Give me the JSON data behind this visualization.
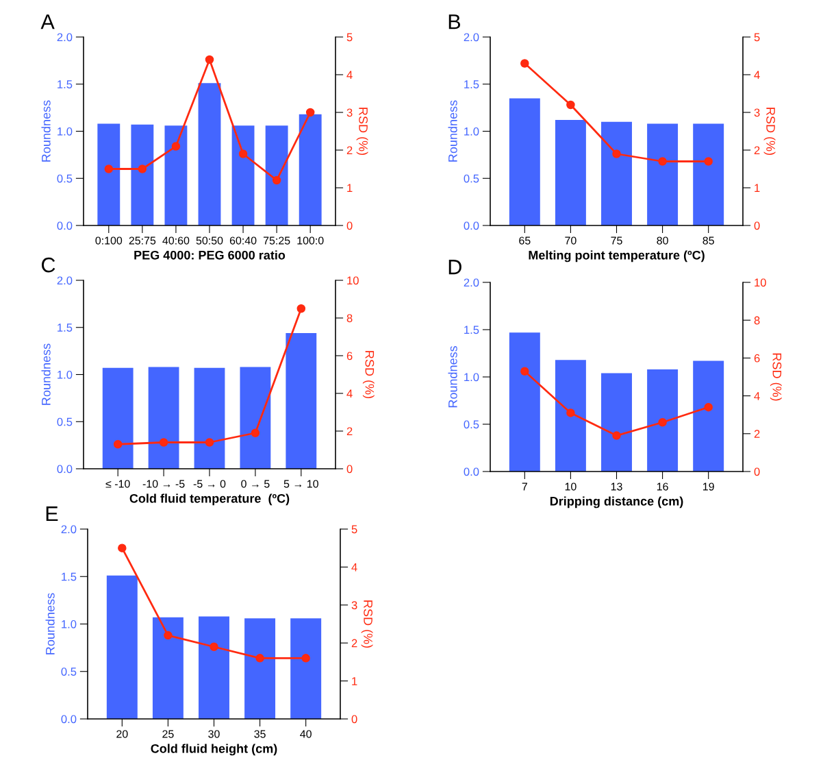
{
  "chart_data": [
    {
      "type": "bar",
      "annotations": [
        "A"
      ],
      "xlabel": "PEG 4000: PEG 6000 ratio",
      "ylabel": "Roundness",
      "y2label": "RSD (%)",
      "categories": [
        "0:100",
        "25:75",
        "40:60",
        "50:50",
        "60:40",
        "75:25",
        "100:0"
      ],
      "ylim": [
        0,
        2
      ],
      "yticks": [
        {
          "value": 0,
          "label": "0.0"
        },
        {
          "value": 0.5,
          "label": "0.5"
        },
        {
          "value": 1,
          "label": "1.0"
        },
        {
          "value": 1.5,
          "label": "1.5"
        },
        {
          "value": 2,
          "label": "2.0"
        }
      ],
      "y2lim": [
        0,
        5
      ],
      "y2ticks": [
        0,
        1,
        2,
        3,
        4,
        5
      ],
      "series": [
        {
          "color": "#4466ff",
          "values": [
            1.08,
            1.07,
            1.06,
            1.51,
            1.06,
            1.06,
            1.18
          ]
        },
        {
          "type": "line",
          "axis": "y2",
          "marker": "circle",
          "color": "#ff2a10",
          "values": [
            1.5,
            1.5,
            2.1,
            4.4,
            1.9,
            1.2,
            3.0
          ]
        }
      ]
    },
    {
      "type": "bar",
      "annotations": [
        "B"
      ],
      "xlabel": "Melting point temperature (ºC)",
      "ylabel": "Roundness",
      "y2label": "RSD (%)",
      "categories": [
        "65",
        "70",
        "75",
        "80",
        "85"
      ],
      "ylim": [
        0,
        2
      ],
      "yticks": [
        {
          "value": 0,
          "label": "0.0"
        },
        {
          "value": 0.5,
          "label": "0.5"
        },
        {
          "value": 1,
          "label": "1.0"
        },
        {
          "value": 1.5,
          "label": "1.5"
        },
        {
          "value": 2,
          "label": "2.0"
        }
      ],
      "y2lim": [
        0,
        5
      ],
      "y2ticks": [
        0,
        1,
        2,
        3,
        4,
        5
      ],
      "series": [
        {
          "color": "#4466ff",
          "values": [
            1.35,
            1.12,
            1.1,
            1.08,
            1.08
          ]
        },
        {
          "type": "line",
          "axis": "y2",
          "marker": "circle",
          "color": "#ff2a10",
          "values": [
            4.3,
            3.2,
            1.9,
            1.7,
            1.7
          ]
        }
      ]
    },
    {
      "type": "bar",
      "annotations": [
        "C"
      ],
      "xlabel": "Cold fluid temperature  (ºC)",
      "ylabel": "Roundness",
      "y2label": "RSD (%)",
      "categories": [
        "≤ -10",
        "-10 → -5",
        "-5 → 0",
        "0 → 5",
        "5 → 10"
      ],
      "ylim": [
        0,
        2
      ],
      "yticks": [
        {
          "value": 0,
          "label": "0.0"
        },
        {
          "value": 0.5,
          "label": "0.5"
        },
        {
          "value": 1,
          "label": "1.0"
        },
        {
          "value": 1.5,
          "label": "1.5"
        },
        {
          "value": 2,
          "label": "2.0"
        }
      ],
      "y2lim": [
        0,
        10
      ],
      "y2ticks": [
        0,
        2,
        4,
        6,
        8,
        10
      ],
      "series": [
        {
          "color": "#4466ff",
          "values": [
            1.07,
            1.08,
            1.07,
            1.08,
            1.44
          ]
        },
        {
          "type": "line",
          "axis": "y2",
          "marker": "circle",
          "color": "#ff2a10",
          "values": [
            1.3,
            1.4,
            1.4,
            1.9,
            8.5
          ]
        }
      ]
    },
    {
      "type": "bar",
      "annotations": [
        "D"
      ],
      "xlabel": "Dripping distance (cm)",
      "ylabel": "Roundness",
      "y2label": "RSD (%)",
      "categories": [
        "7",
        "10",
        "13",
        "16",
        "19"
      ],
      "ylim": [
        0,
        2
      ],
      "yticks": [
        {
          "value": 0,
          "label": "0.0"
        },
        {
          "value": 0.5,
          "label": "0.5"
        },
        {
          "value": 1,
          "label": "1.0"
        },
        {
          "value": 1.5,
          "label": "1.5"
        },
        {
          "value": 2,
          "label": "2.0"
        }
      ],
      "y2lim": [
        0,
        10
      ],
      "y2ticks": [
        0,
        2,
        4,
        6,
        8,
        10
      ],
      "series": [
        {
          "color": "#4466ff",
          "values": [
            1.47,
            1.18,
            1.04,
            1.08,
            1.17
          ]
        },
        {
          "type": "line",
          "axis": "y2",
          "marker": "circle",
          "color": "#ff2a10",
          "values": [
            5.3,
            3.1,
            1.9,
            2.6,
            3.4
          ]
        }
      ]
    },
    {
      "type": "bar",
      "annotations": [
        "E"
      ],
      "xlabel": "Cold fluid height (cm)",
      "ylabel": "Roundness",
      "y2label": "RSD (%)",
      "categories": [
        "20",
        "25",
        "30",
        "35",
        "40"
      ],
      "ylim": [
        0,
        2
      ],
      "yticks": [
        {
          "value": 0,
          "label": "0.0"
        },
        {
          "value": 0.5,
          "label": "0.5"
        },
        {
          "value": 1,
          "label": "1.0"
        },
        {
          "value": 1.5,
          "label": "1.5"
        },
        {
          "value": 2,
          "label": "2.0"
        }
      ],
      "y2lim": [
        0,
        5
      ],
      "y2ticks": [
        0,
        1,
        2,
        3,
        4,
        5
      ],
      "series": [
        {
          "color": "#4466ff",
          "values": [
            1.51,
            1.07,
            1.08,
            1.06,
            1.06
          ]
        },
        {
          "type": "line",
          "axis": "y2",
          "marker": "circle",
          "color": "#ff2a10",
          "values": [
            4.5,
            2.2,
            1.9,
            1.6,
            1.6
          ]
        }
      ]
    }
  ]
}
